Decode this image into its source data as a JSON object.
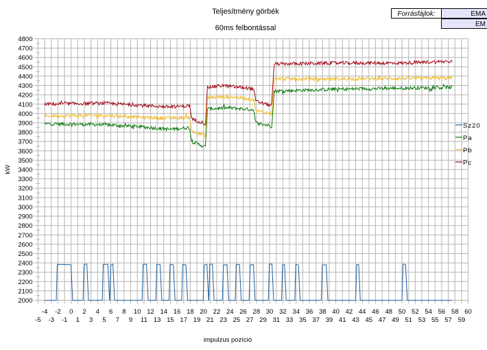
{
  "source_files": {
    "label": "Forrásfájlok:",
    "files": [
      "EMA",
      "EM"
    ]
  },
  "chart_data": {
    "type": "line",
    "title": "Teljesítmény görbék",
    "subtitle": "60ms felbontással",
    "xlabel": "impulzus pozíció",
    "ylabel": "kW",
    "xlim": [
      -5,
      60
    ],
    "ylim": [
      2000,
      4800
    ],
    "ytick_step": 100,
    "xtick_step": 1,
    "grid": true,
    "legend_position": "right",
    "colors": {
      "Sz20": "#1f5f9f",
      "Pa": "#087808",
      "Pb": "#f0b820",
      "Pc": "#a00010",
      "grid": "#b4b4b4"
    },
    "series": [
      {
        "name": "Sz20",
        "baseline": 2000,
        "high": 2380,
        "pulses": [
          [
            -2.15,
            0.03
          ],
          [
            1.9,
            2.42
          ],
          [
            4.8,
            5.6
          ],
          [
            5.94,
            6.36
          ],
          [
            10.82,
            11.44
          ],
          [
            12.9,
            13.5
          ],
          [
            14.9,
            15.5
          ],
          [
            16.8,
            17.4
          ],
          [
            20.05,
            20.57
          ],
          [
            20.9,
            21.4
          ],
          [
            22.96,
            23.6
          ],
          [
            24.9,
            25.5
          ],
          [
            27.0,
            27.6
          ],
          [
            29.9,
            30.4
          ],
          [
            31.9,
            32.3
          ],
          [
            33.9,
            34.4
          ],
          [
            37.9,
            38.6
          ],
          [
            43.1,
            43.5
          ],
          [
            50.1,
            50.6
          ]
        ],
        "x_range": [
          -4,
          57.6
        ]
      },
      {
        "name": "Pa",
        "points": [
          [
            -4,
            3890
          ],
          [
            5,
            3880
          ],
          [
            10,
            3860
          ],
          [
            15,
            3830
          ],
          [
            17.9,
            3850
          ],
          [
            18.2,
            3700
          ],
          [
            20,
            3650
          ],
          [
            20.3,
            3640
          ],
          [
            20.6,
            4050
          ],
          [
            24,
            4060
          ],
          [
            27.6,
            4040
          ],
          [
            27.9,
            3900
          ],
          [
            30,
            3870
          ],
          [
            30.3,
            3860
          ],
          [
            30.7,
            4240
          ],
          [
            40,
            4260
          ],
          [
            57.6,
            4280
          ]
        ]
      },
      {
        "name": "Pb",
        "points": [
          [
            -4,
            3975
          ],
          [
            5,
            3980
          ],
          [
            10,
            3960
          ],
          [
            15,
            3950
          ],
          [
            17.9,
            3960
          ],
          [
            18.2,
            3810
          ],
          [
            20,
            3770
          ],
          [
            20.3,
            3760
          ],
          [
            20.6,
            4170
          ],
          [
            24,
            4180
          ],
          [
            27.6,
            4150
          ],
          [
            27.9,
            4030
          ],
          [
            30,
            4000
          ],
          [
            30.3,
            3990
          ],
          [
            30.7,
            4370
          ],
          [
            40,
            4370
          ],
          [
            57.6,
            4380
          ]
        ]
      },
      {
        "name": "Pc",
        "points": [
          [
            -4,
            4100
          ],
          [
            5,
            4110
          ],
          [
            10,
            4090
          ],
          [
            15,
            4070
          ],
          [
            17.5,
            4080
          ],
          [
            17.9,
            4090
          ],
          [
            18.2,
            3940
          ],
          [
            20,
            3900
          ],
          [
            20.3,
            3880
          ],
          [
            20.6,
            4280
          ],
          [
            23,
            4300
          ],
          [
            24,
            4290
          ],
          [
            27,
            4270
          ],
          [
            27.6,
            4260
          ],
          [
            27.9,
            4130
          ],
          [
            30,
            4090
          ],
          [
            30.3,
            4100
          ],
          [
            30.7,
            4530
          ],
          [
            40,
            4540
          ],
          [
            50,
            4540
          ],
          [
            57.6,
            4560
          ]
        ]
      }
    ]
  }
}
